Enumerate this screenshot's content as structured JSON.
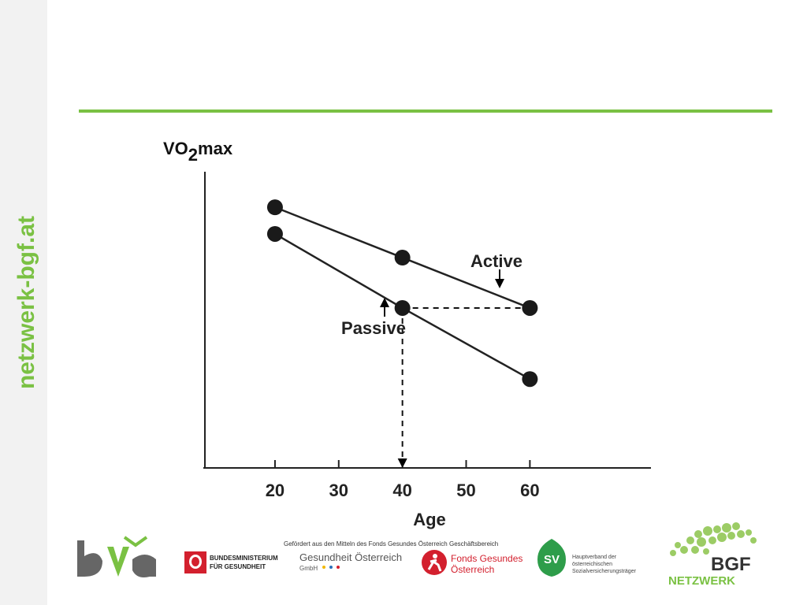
{
  "side_text": "netzwerk-bgf.at",
  "chart_data": {
    "type": "line",
    "ylabel_main": "VO",
    "ylabel_sub": "2",
    "ylabel_tail": "max",
    "xlabel": "Age",
    "categories": [
      "20",
      "30",
      "40",
      "50",
      "60"
    ],
    "series": [
      {
        "name": "Active",
        "x": [
          20,
          40,
          60
        ],
        "values": [
          0.88,
          0.71,
          0.54
        ]
      },
      {
        "name": "Passive",
        "x": [
          20,
          40,
          60
        ],
        "values": [
          0.79,
          0.54,
          0.3
        ]
      }
    ],
    "xlim": [
      9,
      79
    ],
    "ylim": [
      0,
      1
    ],
    "grid": false,
    "legend": "inline annotations",
    "projection": {
      "x": 40,
      "y": 0.54
    }
  },
  "footer": {
    "funded_note": "Gefördert aus den Mitteln des Fonds Gesundes Österreich",
    "office_note": "Geschäftsbereich",
    "ministry_line1": "BUNDESMINISTERIUM",
    "ministry_line2": "FÜR GESUNDHEIT",
    "go_line1": "Gesundheit Österreich",
    "go_line2": "GmbH",
    "fgoe_line1": "Fonds Gesundes",
    "fgoe_line2": "Österreich",
    "hvb_line1": "Hauptverband der",
    "hvb_line2": "österreichischen",
    "hvb_line3": "Sozialversicherungsträger",
    "bgf_top": "BGF",
    "bgf_bottom": "NETZWERK",
    "sv_letters": "SV"
  }
}
